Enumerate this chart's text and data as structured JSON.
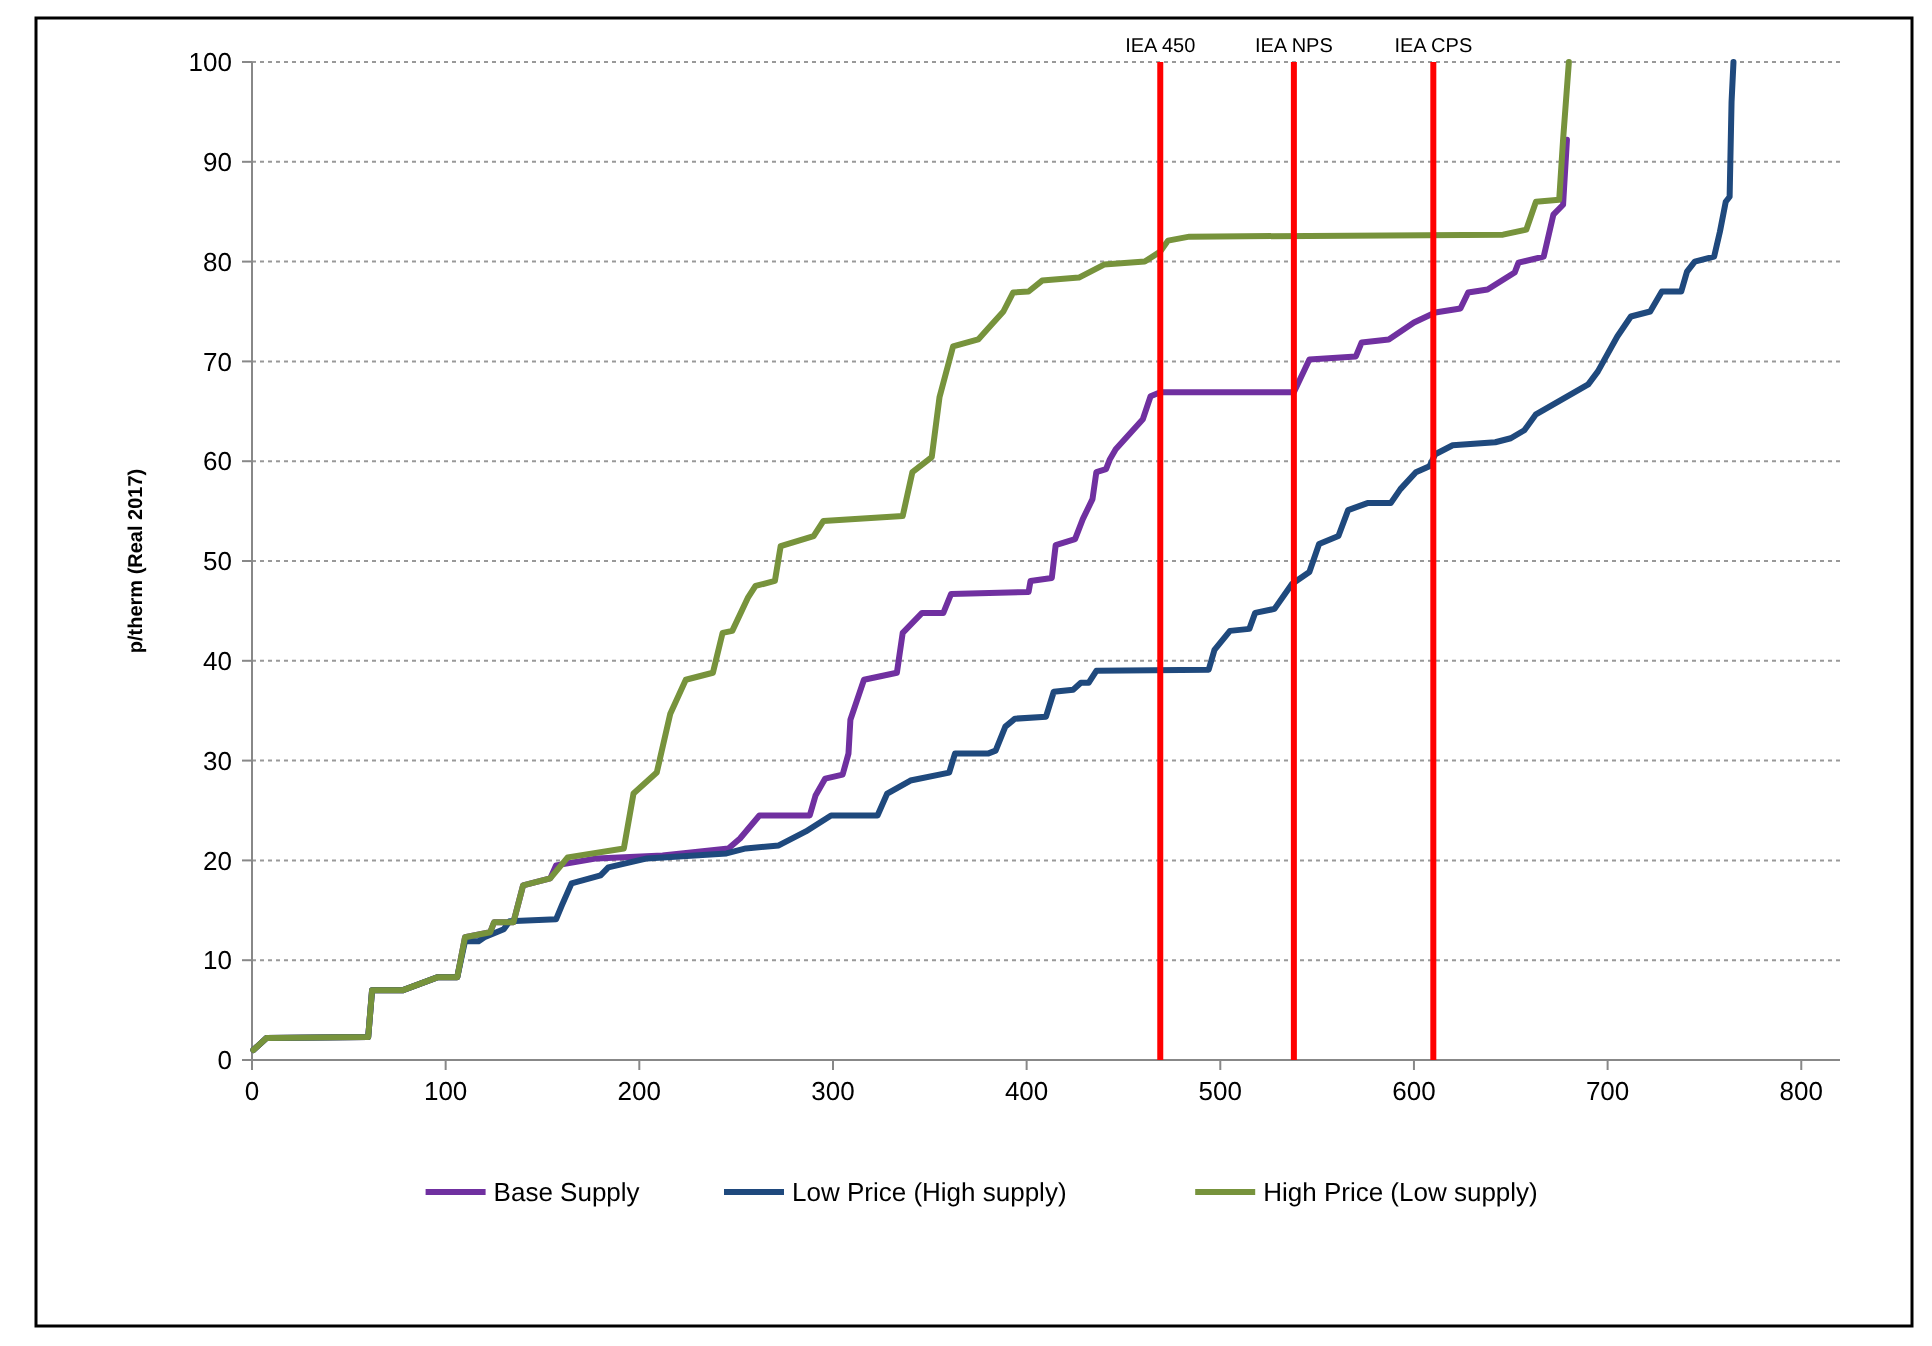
{
  "chart_data": {
    "type": "line",
    "ylabel": "p/therm (Real 2017)",
    "xlim": [
      0,
      820
    ],
    "xticks": [
      0,
      100,
      200,
      300,
      400,
      500,
      600,
      700,
      800
    ],
    "ylim": [
      0,
      100
    ],
    "yticks": [
      0,
      10,
      20,
      30,
      40,
      50,
      60,
      70,
      80,
      90,
      100
    ],
    "grid": "y",
    "legend": "bottom",
    "marker": "none",
    "line_style": "solid",
    "ref_lines": [
      {
        "axis": "x",
        "value": 469,
        "label": "IEA 450",
        "color": "#ff0000"
      },
      {
        "axis": "x",
        "value": 538,
        "label": "IEA NPS",
        "color": "#ff0000"
      },
      {
        "axis": "x",
        "value": 610,
        "label": "IEA CPS",
        "color": "#ff0000"
      }
    ],
    "series": [
      {
        "name": "Base Supply",
        "color": "#7030a0",
        "x": [
          0.7,
          7.5,
          60,
          62,
          78,
          96,
          106,
          110,
          123,
          125,
          135,
          140,
          154,
          157,
          178,
          212,
          246,
          252,
          262,
          288,
          291,
          296,
          305,
          308,
          309,
          316,
          333,
          336,
          346,
          357,
          361,
          401,
          402,
          413,
          415,
          425,
          429,
          434,
          436,
          441,
          443,
          446,
          460,
          464,
          469,
          538,
          546,
          570,
          573,
          587,
          600,
          611,
          624,
          628,
          638,
          652,
          654,
          667,
          672,
          677,
          679
        ],
        "values": [
          1.0,
          2.2,
          2.3,
          7,
          7,
          8.3,
          8.3,
          12.3,
          12.8,
          13.8,
          13.8,
          17.5,
          18.2,
          19.5,
          20.2,
          20.5,
          21.2,
          22.2,
          24.5,
          24.5,
          26.5,
          28.2,
          28.6,
          30.7,
          34.1,
          38.1,
          38.8,
          42.8,
          44.8,
          44.8,
          46.7,
          46.9,
          48,
          48.3,
          51.6,
          52.2,
          54.2,
          56.2,
          58.9,
          59.2,
          60.2,
          61.2,
          64.2,
          66.5,
          66.9,
          66.9,
          70.2,
          70.5,
          71.9,
          72.2,
          73.9,
          74.9,
          75.3,
          76.9,
          77.2,
          78.9,
          79.9,
          80.5,
          84.7,
          85.7,
          92.2
        ]
      },
      {
        "name": "Low Price (High supply)",
        "color": "#1f497d",
        "x": [
          0.7,
          7.5,
          60,
          62,
          78,
          96,
          106,
          110,
          117,
          120,
          130,
          133,
          157,
          160,
          165,
          180,
          184,
          204,
          245,
          255,
          272,
          286,
          299,
          323,
          328,
          340,
          360,
          363,
          380,
          384,
          389,
          394,
          410,
          414,
          424,
          428,
          432,
          436,
          494,
          497,
          505,
          515,
          518,
          528,
          537,
          546,
          551,
          561,
          566,
          576,
          588,
          593,
          601,
          608,
          611,
          620,
          642,
          650,
          657,
          663,
          690,
          695,
          705,
          712,
          722,
          728,
          738,
          741,
          745,
          755,
          758,
          761,
          763,
          764,
          765
        ],
        "values": [
          1.0,
          2.2,
          2.3,
          7,
          7,
          8.3,
          8.3,
          11.9,
          11.9,
          12.3,
          13.1,
          13.9,
          14.1,
          15.5,
          17.7,
          18.5,
          19.3,
          20.2,
          20.7,
          21.2,
          21.5,
          22.9,
          24.5,
          24.5,
          26.7,
          28,
          28.8,
          30.7,
          30.7,
          31,
          33.4,
          34.2,
          34.4,
          36.9,
          37.1,
          37.8,
          37.8,
          39,
          39.1,
          41.1,
          43,
          43.2,
          44.8,
          45.2,
          47.7,
          48.9,
          51.7,
          52.5,
          55.1,
          55.8,
          55.8,
          57.2,
          58.9,
          59.5,
          60.7,
          61.6,
          61.9,
          62.3,
          63.1,
          64.7,
          67.7,
          69,
          72.5,
          74.5,
          75,
          77,
          77,
          79,
          80,
          80.5,
          83,
          86,
          86.5,
          96,
          100
        ]
      },
      {
        "name": "High Price (Low supply)",
        "color": "#77933c",
        "x": [
          0.7,
          7.5,
          60,
          62,
          78,
          96,
          106,
          110,
          123,
          125,
          135,
          140,
          154,
          163,
          192,
          197,
          209,
          216,
          224,
          238,
          243,
          248,
          256,
          260,
          270,
          273,
          290,
          295,
          336,
          341,
          351,
          355,
          362,
          375,
          381,
          388,
          393,
          401,
          408,
          427,
          440,
          461,
          469,
          473,
          484,
          646,
          658,
          663,
          675,
          677,
          680
        ],
        "values": [
          1.0,
          2.2,
          2.3,
          7,
          7,
          8.3,
          8.3,
          12.3,
          12.8,
          13.8,
          13.8,
          17.5,
          18.2,
          20.3,
          21.2,
          26.7,
          28.8,
          34.7,
          38.1,
          38.8,
          42.8,
          43,
          46.3,
          47.5,
          48,
          51.5,
          52.5,
          54,
          54.5,
          58.9,
          60.4,
          66.4,
          71.5,
          72.2,
          73.5,
          75,
          76.9,
          77,
          78.1,
          78.4,
          79.7,
          80,
          81,
          82.1,
          82.5,
          82.7,
          83.2,
          86,
          86.2,
          92.2,
          100
        ]
      }
    ]
  }
}
